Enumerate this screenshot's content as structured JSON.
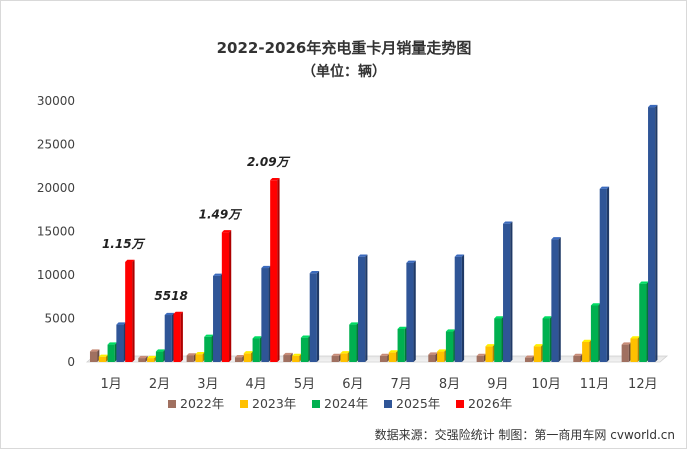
{
  "chart_data": {
    "type": "bar",
    "title": "2022-2026年充电重卡月销量走势图",
    "subtitle": "（单位：辆）",
    "categories": [
      "1月",
      "2月",
      "3月",
      "4月",
      "5月",
      "6月",
      "7月",
      "8月",
      "9月",
      "10月",
      "11月",
      "12月"
    ],
    "series": [
      {
        "name": "2022年",
        "color": "#a07060",
        "values": [
          1200,
          450,
          750,
          550,
          800,
          700,
          700,
          850,
          700,
          500,
          700,
          2000
        ]
      },
      {
        "name": "2023年",
        "color": "#ffc000",
        "values": [
          600,
          450,
          900,
          1000,
          700,
          1000,
          1100,
          1200,
          1800,
          1800,
          2300,
          2700
        ]
      },
      {
        "name": "2024年",
        "color": "#00b050",
        "values": [
          2000,
          1200,
          2900,
          2700,
          2800,
          4300,
          3800,
          3500,
          5000,
          5000,
          6500,
          9000
        ]
      },
      {
        "name": "2025年",
        "color": "#2f5597",
        "values": [
          4300,
          5400,
          9900,
          10800,
          10200,
          12100,
          11400,
          12100,
          15900,
          14100,
          19900,
          29300
        ]
      },
      {
        "name": "2026年",
        "color": "#ff0000",
        "values": [
          11500,
          5518,
          14900,
          20900,
          null,
          null,
          null,
          null,
          null,
          null,
          null,
          null
        ]
      }
    ],
    "ylim": [
      0,
      30000
    ],
    "yticks": [
      0,
      5000,
      10000,
      15000,
      20000,
      25000,
      30000
    ],
    "grid": false,
    "legend": "bottom",
    "annotations": [
      {
        "category": "1月",
        "series": "2026年",
        "text": "1.15万"
      },
      {
        "category": "2月",
        "series": "2026年",
        "text": "5518"
      },
      {
        "category": "3月",
        "series": "2026年",
        "text": "1.49万"
      },
      {
        "category": "4月",
        "series": "2026年",
        "text": "2.09万"
      }
    ]
  },
  "source_note": "数据来源：交强险统计  制图：第一商用车网 cvworld.cn"
}
